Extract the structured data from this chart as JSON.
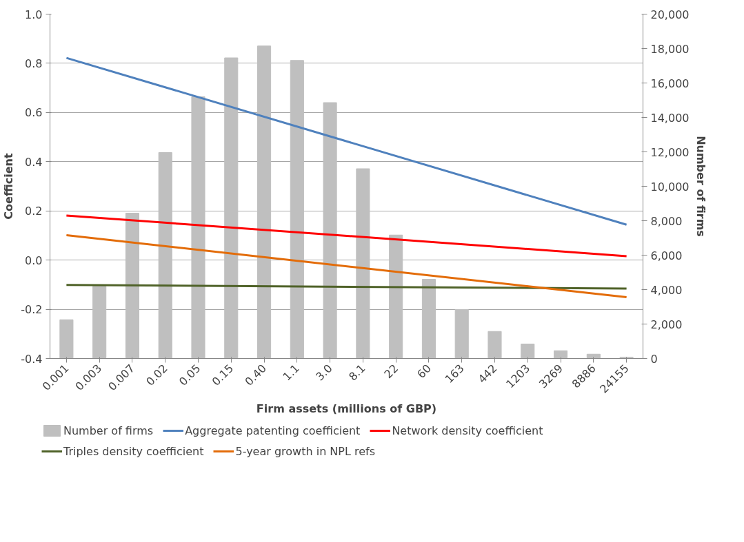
{
  "chart_data": {
    "type": "bar",
    "xlabel": "Firm assets (millions of GBP)",
    "ylabel": "Coefficient",
    "y2label": "Number of firms",
    "categories": [
      "0.001",
      "0.003",
      "0.007",
      "0.02",
      "0.05",
      "0.15",
      "0.40",
      "1.1",
      "3.0",
      "8.1",
      "22",
      "60",
      "163",
      "442",
      "1203",
      "3269",
      "8886",
      "24155"
    ],
    "series": [
      {
        "name": "Number of firms",
        "axis": "y2",
        "color": "#bfbfbf",
        "values": [
          2250,
          4200,
          8440,
          11960,
          15200,
          17460,
          18150,
          17310,
          14860,
          11020,
          7170,
          4600,
          2840,
          1570,
          840,
          450,
          250,
          70
        ]
      },
      {
        "name": "Aggregate patenting coefficient",
        "type": "line",
        "color": "#4f81bd",
        "x": [
          "0.001",
          "24155"
        ],
        "values": [
          0.822,
          0.144
        ]
      },
      {
        "name": "Network density coefficient",
        "type": "line",
        "color": "#ff0000",
        "x": [
          "0.001",
          "24155"
        ],
        "values": [
          0.181,
          0.016
        ]
      },
      {
        "name": "Triples density coefficient",
        "type": "line",
        "color": "#4f6228",
        "x": [
          "0.001",
          "24155"
        ],
        "values": [
          -0.101,
          -0.116
        ]
      },
      {
        "name": "5-year growth in NPL refs",
        "type": "line",
        "color": "#e36c09",
        "x": [
          "0.001",
          "24155"
        ],
        "values": [
          0.101,
          -0.151
        ]
      }
    ],
    "ylim": [
      -0.4,
      1.0
    ],
    "yticks": [
      {
        "value": -0.4,
        "label": "-0.4"
      },
      {
        "value": -0.2,
        "label": "-0.2"
      },
      {
        "value": 0,
        "label": "0.0"
      },
      {
        "value": 0.2,
        "label": "0.2"
      },
      {
        "value": 0.4,
        "label": "0.4"
      },
      {
        "value": 0.6,
        "label": "0.6"
      },
      {
        "value": 0.8,
        "label": "0.8"
      },
      {
        "value": 1.0,
        "label": "1.0"
      }
    ],
    "y2lim": [
      0,
      20000
    ],
    "y2ticks": [
      0,
      {
        "value": 2000,
        "label": "2,000"
      },
      {
        "value": 4000,
        "label": "4,000"
      },
      {
        "value": 6000,
        "label": "6,000"
      },
      {
        "value": 8000,
        "label": "8,000"
      },
      {
        "value": 10000,
        "label": "10,000"
      },
      {
        "value": 12000,
        "label": "12,000"
      },
      {
        "value": 14000,
        "label": "14,000"
      },
      {
        "value": 16000,
        "label": "16,000"
      },
      {
        "value": 18000,
        "label": "18,000"
      },
      {
        "value": 20000,
        "label": "20,000"
      }
    ],
    "grid": "y",
    "legend": "bottom",
    "marker": "none",
    "line_style": "solid"
  }
}
